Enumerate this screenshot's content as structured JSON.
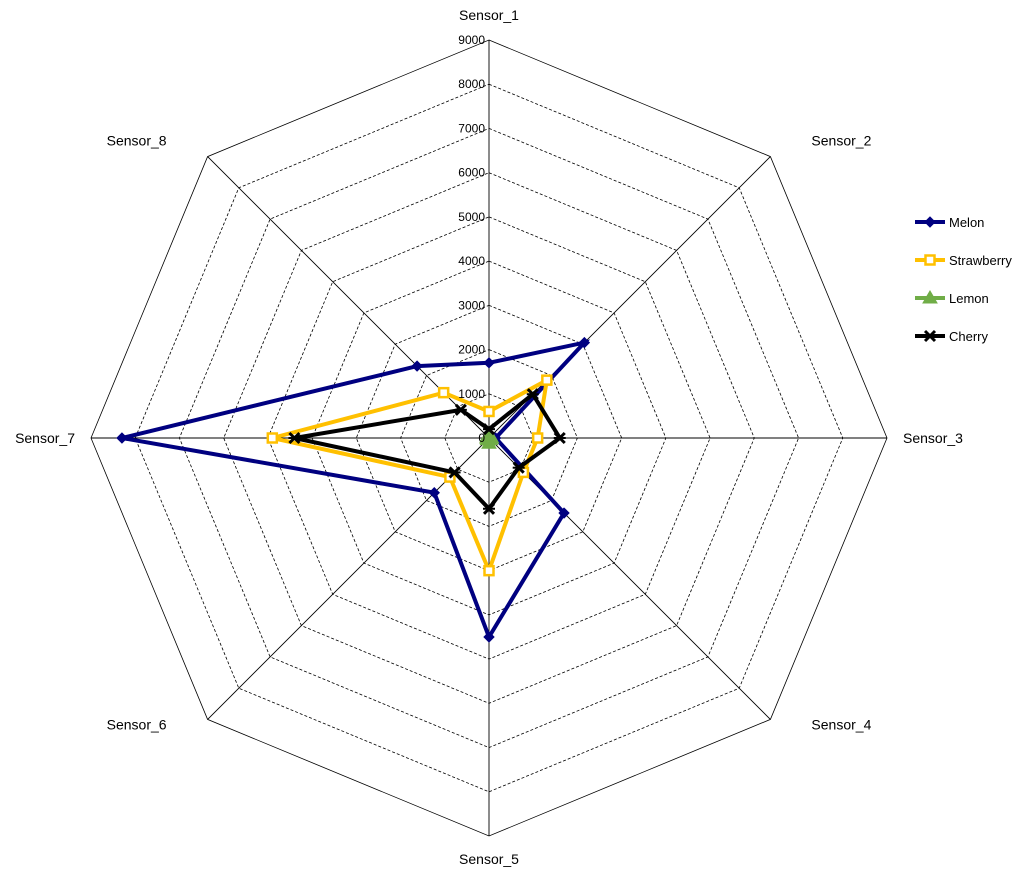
{
  "chart_data": {
    "type": "radar",
    "categories": [
      "Sensor_1",
      "Sensor_2",
      "Sensor_3",
      "Sensor_4",
      "Sensor_5",
      "Sensor_6",
      "Sensor_7",
      "Sensor_8"
    ],
    "rlim": [
      0,
      9000
    ],
    "ticks": [
      0,
      1000,
      2000,
      3000,
      4000,
      5000,
      6000,
      7000,
      8000,
      9000
    ],
    "tick_labels": [
      "0",
      "1000",
      "2000",
      "3000",
      "4000",
      "5000",
      "6000",
      "7000",
      "8000",
      "9000"
    ],
    "grid": true,
    "legend_position": "right",
    "series": [
      {
        "name": "Melon",
        "color": "#000080",
        "marker": "diamond",
        "values": [
          1700,
          3050,
          150,
          2400,
          4500,
          1750,
          8300,
          2300
        ]
      },
      {
        "name": "Strawberry",
        "color": "#FFC000",
        "marker": "square",
        "values": [
          600,
          1850,
          1100,
          1100,
          3000,
          1250,
          4900,
          1450
        ]
      },
      {
        "name": "Lemon",
        "color": "#70AD47",
        "marker": "triangle",
        "values": [
          50,
          50,
          60,
          50,
          120,
          50,
          50,
          50
        ]
      },
      {
        "name": "Cherry",
        "color": "#000000",
        "marker": "star",
        "values": [
          200,
          1400,
          1600,
          950,
          1600,
          1100,
          4400,
          900
        ]
      }
    ]
  }
}
